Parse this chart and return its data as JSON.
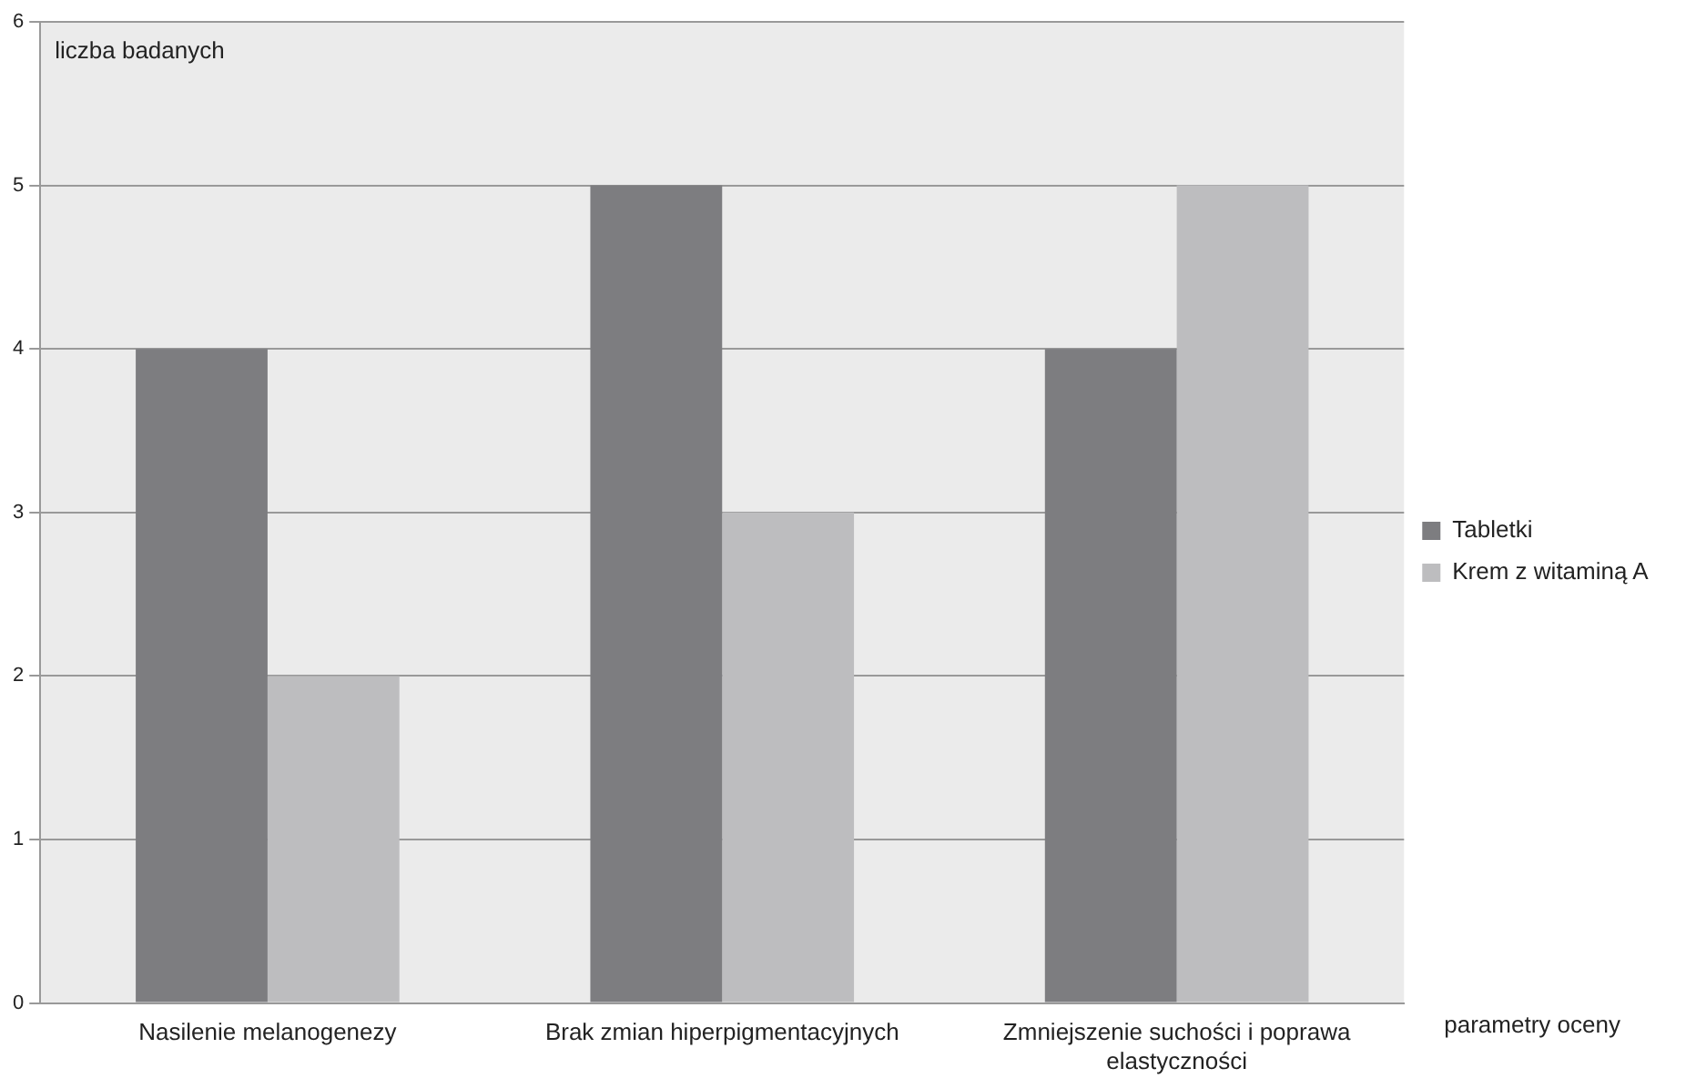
{
  "chart_data": {
    "type": "bar",
    "ylabel": "liczba badanych",
    "xlabel": "parametry oceny",
    "categories": [
      "Nasilenie melanogenezy",
      "Brak zmian hiperpigmentacyjnych",
      "Zmniejszenie suchości i poprawa elastyczności"
    ],
    "series": [
      {
        "name": "Tabletki",
        "color": "#7d7d80",
        "values": [
          4,
          5,
          4
        ]
      },
      {
        "name": "Krem z witaminą A",
        "color": "#bdbdbf",
        "values": [
          2,
          3,
          5
        ]
      }
    ],
    "ylim": [
      0,
      6
    ],
    "yticks": [
      0,
      1,
      2,
      3,
      4,
      5,
      6
    ],
    "grid": "y",
    "legend": "right"
  }
}
